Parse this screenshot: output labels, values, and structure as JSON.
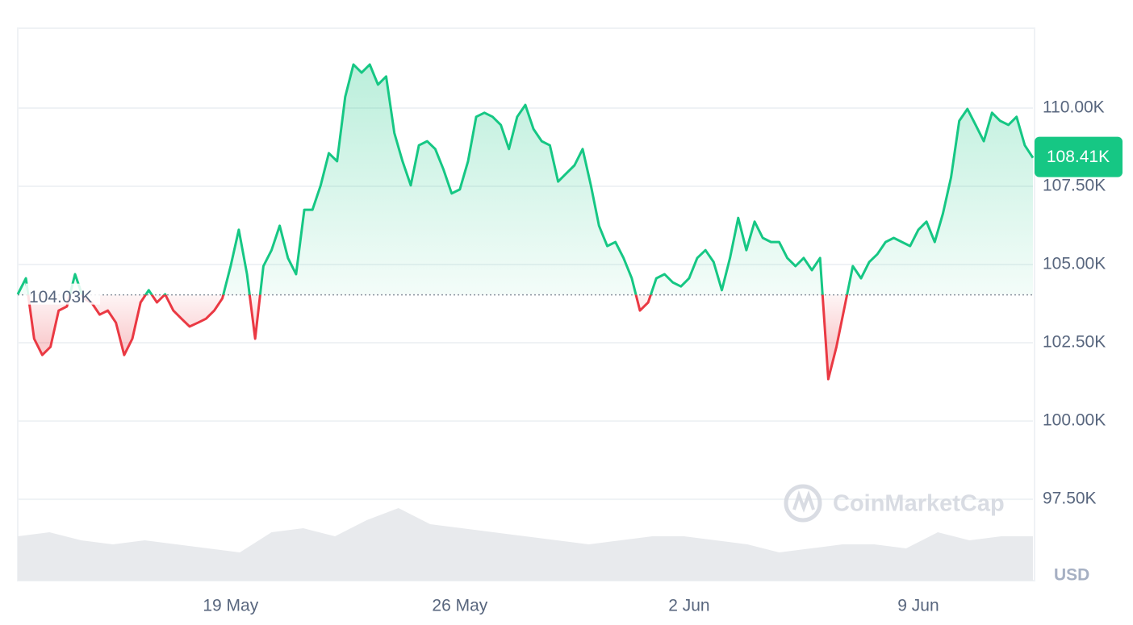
{
  "chart_data": {
    "type": "line",
    "categories": [
      null,
      null,
      null,
      null,
      null,
      null,
      null,
      null,
      null,
      null,
      null,
      null,
      null,
      null,
      null,
      null,
      null,
      null,
      null,
      null,
      null,
      null,
      null,
      null,
      null,
      null,
      "19 May",
      null,
      null,
      null,
      null,
      null,
      null,
      null,
      null,
      null,
      null,
      null,
      null,
      null,
      null,
      null,
      null,
      null,
      null,
      null,
      null,
      null,
      null,
      null,
      null,
      null,
      null,
      null,
      "26 May",
      null,
      null,
      null,
      null,
      null,
      null,
      null,
      null,
      null,
      null,
      null,
      null,
      null,
      null,
      null,
      null,
      null,
      null,
      null,
      null,
      null,
      null,
      null,
      null,
      null,
      null,
      null,
      "2 Jun",
      null,
      null,
      null,
      null,
      null,
      null,
      null,
      null,
      null,
      null,
      null,
      null,
      null,
      null,
      null,
      null,
      null,
      null,
      null,
      null,
      null,
      null,
      null,
      null,
      null,
      null,
      null,
      "9 Jun",
      null,
      null,
      null,
      null,
      null,
      null,
      null,
      null,
      null,
      null,
      null,
      null,
      null,
      null
    ],
    "values": [
      104.05,
      104.56,
      102.63,
      102.11,
      102.37,
      103.53,
      103.66,
      104.69,
      103.92,
      103.79,
      103.4,
      103.53,
      103.14,
      102.11,
      102.63,
      103.79,
      104.18,
      103.79,
      104.05,
      103.53,
      103.27,
      103.02,
      103.14,
      103.27,
      103.53,
      103.92,
      104.95,
      106.11,
      104.69,
      102.63,
      104.95,
      105.46,
      106.24,
      105.21,
      104.69,
      106.75,
      106.75,
      107.53,
      108.56,
      108.3,
      110.36,
      111.39,
      111.13,
      111.39,
      110.75,
      111.01,
      109.2,
      108.3,
      107.53,
      108.81,
      108.94,
      108.69,
      108.04,
      107.27,
      107.4,
      108.3,
      109.72,
      109.85,
      109.72,
      109.46,
      108.69,
      109.72,
      110.1,
      109.33,
      108.94,
      108.81,
      107.65,
      107.91,
      108.17,
      108.69,
      107.53,
      106.24,
      105.59,
      105.72,
      105.21,
      104.56,
      103.53,
      103.79,
      104.56,
      104.69,
      104.43,
      104.3,
      104.56,
      105.21,
      105.46,
      105.08,
      104.18,
      105.21,
      106.49,
      105.46,
      106.37,
      105.85,
      105.72,
      105.72,
      105.21,
      104.95,
      105.21,
      104.82,
      105.21,
      101.34,
      102.37,
      103.66,
      104.95,
      104.56,
      105.08,
      105.33,
      105.72,
      105.85,
      105.72,
      105.59,
      106.11,
      106.37,
      105.72,
      106.62,
      107.78,
      109.59,
      109.97,
      109.46,
      108.94,
      109.85,
      109.59,
      109.46,
      109.72,
      108.81,
      108.41
    ],
    "color_up": "#16c784",
    "color_down": "#ea3943",
    "baseline": {
      "value": 104.03,
      "label": "104.03K"
    },
    "current": {
      "value": 108.41,
      "label": "108.41K"
    },
    "ylim": [
      94.9,
      112.55
    ],
    "yticks": [
      {
        "value": 97.5,
        "label": "97.50K"
      },
      {
        "value": 100,
        "label": "100.00K"
      },
      {
        "value": 102.5,
        "label": "102.50K"
      },
      {
        "value": 105,
        "label": "105.00K"
      },
      {
        "value": 107.5,
        "label": "107.50K"
      },
      {
        "value": 110,
        "label": "110.00K"
      }
    ],
    "grid": true,
    "volume": {
      "color": "#e8eaed",
      "ylim": [
        0,
        100
      ],
      "values": [
        55,
        60,
        50,
        45,
        50,
        45,
        40,
        35,
        60,
        65,
        55,
        75,
        90,
        70,
        65,
        60,
        55,
        50,
        45,
        50,
        55,
        55,
        50,
        45,
        35,
        40,
        45,
        45,
        40,
        60,
        50,
        55,
        55
      ]
    },
    "currency": "USD",
    "watermark": "CoinMarketCap"
  }
}
